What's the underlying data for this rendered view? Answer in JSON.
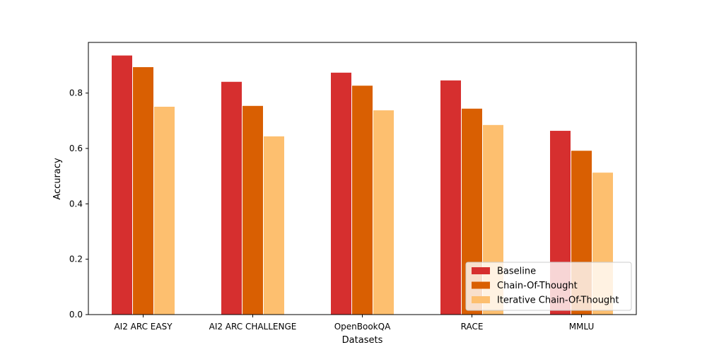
{
  "chart_data": {
    "type": "bar",
    "title": "",
    "xlabel": "Datasets",
    "ylabel": "Accuracy",
    "categories": [
      "AI2 ARC EASY",
      "AI2 ARC CHALLENGE",
      "OpenBookQA",
      "RACE",
      "MMLU"
    ],
    "series": [
      {
        "name": "Baseline",
        "color": "#d62f2f",
        "values": [
          0.937,
          0.842,
          0.875,
          0.847,
          0.665
        ]
      },
      {
        "name": "Chain-Of-Thought",
        "color": "#d95f02",
        "values": [
          0.895,
          0.755,
          0.828,
          0.745,
          0.593
        ]
      },
      {
        "name": "Iterative Chain-Of-Thought",
        "color": "#fdbf6f",
        "values": [
          0.752,
          0.645,
          0.739,
          0.686,
          0.514
        ]
      }
    ],
    "yticks": [
      "0.0",
      "0.2",
      "0.4",
      "0.6",
      "0.8"
    ],
    "ylim": [
      0,
      0.983
    ],
    "grid": false,
    "legend_position": "lower-right"
  }
}
